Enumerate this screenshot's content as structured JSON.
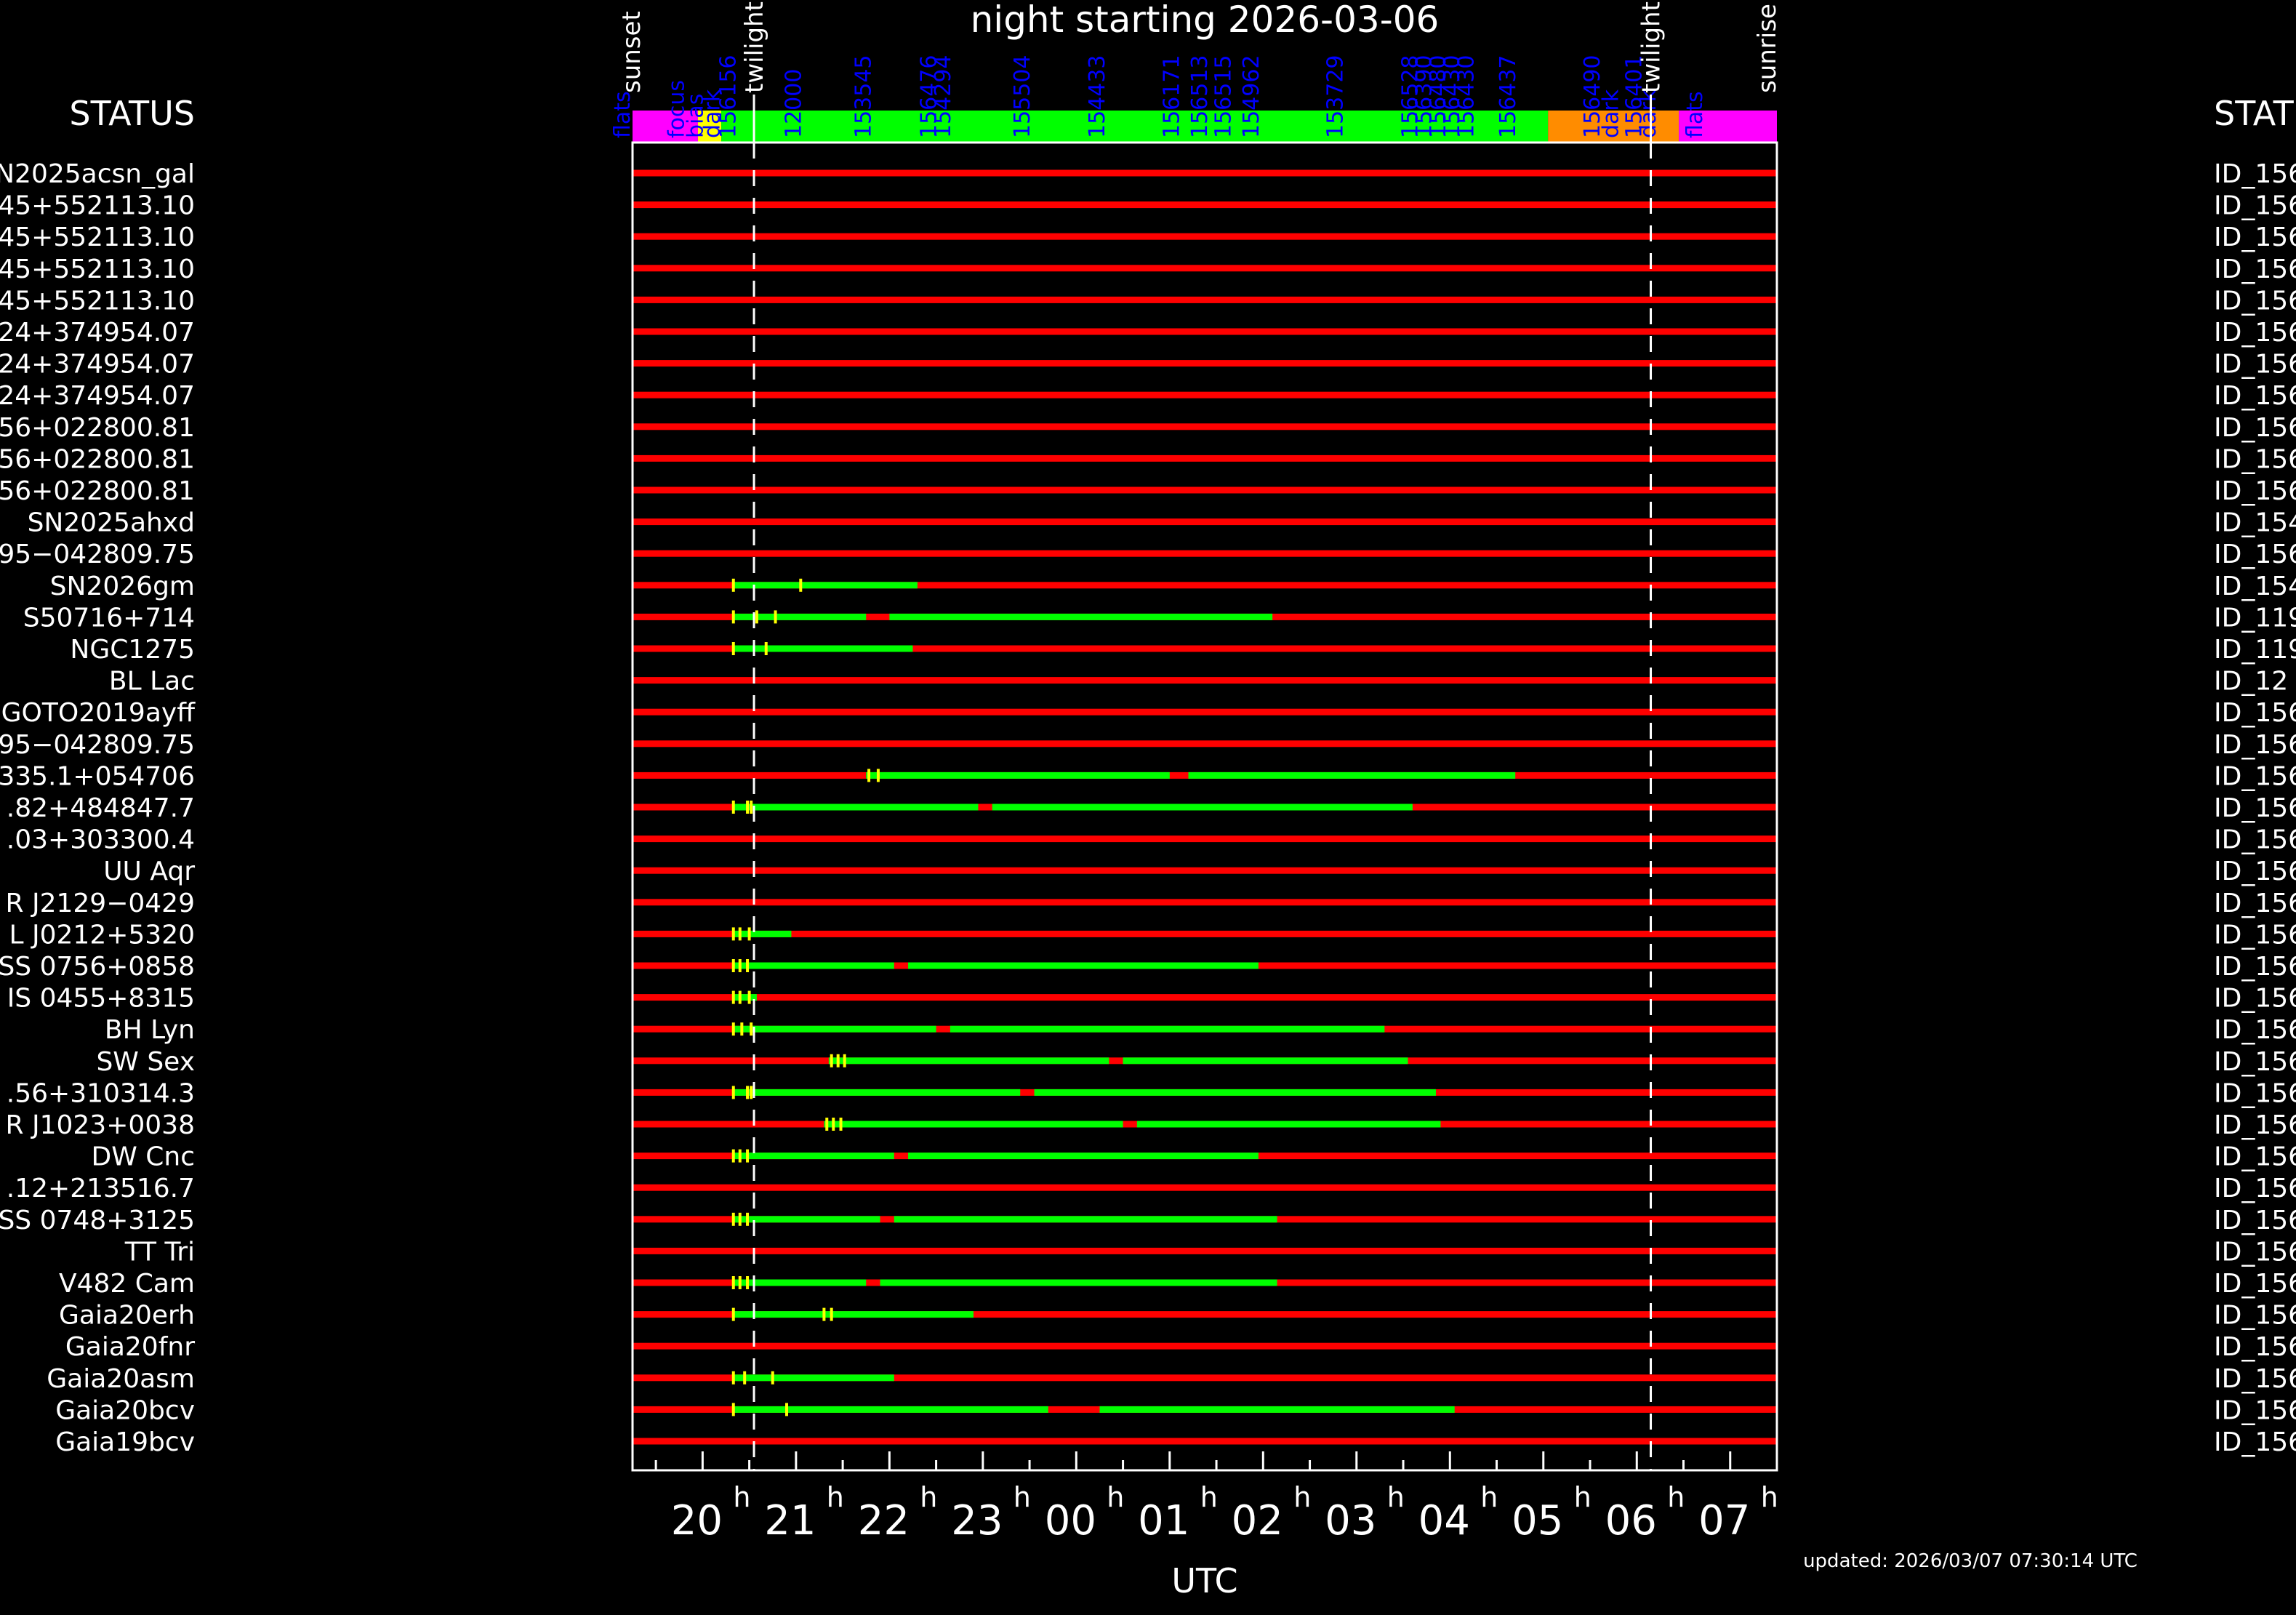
{
  "chart_data": {
    "type": "gantt",
    "title": "night starting 2026-03-06",
    "xlabel": "UTC",
    "left_header": "STATUS",
    "right_header": "STATUS",
    "updated": "updated: 2026/03/07 07:30:14 UTC",
    "x_range_hours": [
      19.25,
      31.5
    ],
    "x_ticks": [
      "20",
      "21",
      "22",
      "23",
      "00",
      "01",
      "02",
      "03",
      "04",
      "05",
      "06",
      "07"
    ],
    "x_tick_hours": [
      20,
      21,
      22,
      23,
      24,
      25,
      26,
      27,
      28,
      29,
      30,
      31
    ],
    "tick_suffix": "h",
    "twilight_hours": [
      20.55,
      30.15
    ],
    "events": [
      {
        "label": "sunset",
        "hour": 19.25
      },
      {
        "label": "twilight",
        "hour": 20.55
      },
      {
        "label": "twilight",
        "hour": 30.15
      },
      {
        "label": "sunrise",
        "hour": 31.5
      }
    ],
    "top_bar": [
      {
        "start": 19.25,
        "end": 19.95,
        "color": "#ff00ff"
      },
      {
        "start": 19.95,
        "end": 20.2,
        "color": "#ffff00"
      },
      {
        "start": 20.2,
        "end": 29.05,
        "color": "#00ff00"
      },
      {
        "start": 29.05,
        "end": 30.45,
        "color": "#ff8c00"
      },
      {
        "start": 30.45,
        "end": 31.5,
        "color": "#ff00ff"
      }
    ],
    "top_labels": [
      {
        "text": "flats",
        "hour": 19.22
      },
      {
        "text": "focus",
        "hour": 19.8
      },
      {
        "text": "bias",
        "hour": 20.0
      },
      {
        "text": "dark",
        "hour": 20.18
      },
      {
        "text": "156156",
        "hour": 20.35
      },
      {
        "text": "12000",
        "hour": 21.05
      },
      {
        "text": "153545",
        "hour": 21.8
      },
      {
        "text": "156476",
        "hour": 22.5
      },
      {
        "text": "154294",
        "hour": 22.65
      },
      {
        "text": "155504",
        "hour": 23.5
      },
      {
        "text": "154433",
        "hour": 24.3
      },
      {
        "text": "156171",
        "hour": 25.1
      },
      {
        "text": "156513",
        "hour": 25.4
      },
      {
        "text": "156515",
        "hour": 25.65
      },
      {
        "text": "154962",
        "hour": 25.95
      },
      {
        "text": "153729",
        "hour": 26.85
      },
      {
        "text": "156528",
        "hour": 27.65
      },
      {
        "text": "156390",
        "hour": 27.8
      },
      {
        "text": "156480",
        "hour": 27.95
      },
      {
        "text": "156430",
        "hour": 28.1
      },
      {
        "text": "156430",
        "hour": 28.25
      },
      {
        "text": "156437",
        "hour": 28.7
      },
      {
        "text": "156490",
        "hour": 29.6
      },
      {
        "text": "dark",
        "hour": 29.8
      },
      {
        "text": "156401",
        "hour": 30.05
      },
      {
        "text": "dark",
        "hour": 30.2
      },
      {
        "text": "flats",
        "hour": 30.7
      }
    ],
    "rows": [
      {
        "target": "N2025acsn_gal",
        "id": "ID_156",
        "windows": [],
        "marks": []
      },
      {
        "target": "45+552113.10",
        "id": "ID_156",
        "windows": [],
        "marks": []
      },
      {
        "target": "45+552113.10",
        "id": "ID_156",
        "windows": [],
        "marks": []
      },
      {
        "target": "45+552113.10",
        "id": "ID_156",
        "windows": [],
        "marks": []
      },
      {
        "target": "45+552113.10",
        "id": "ID_156",
        "windows": [],
        "marks": []
      },
      {
        "target": "24+374954.07",
        "id": "ID_156",
        "windows": [],
        "marks": []
      },
      {
        "target": "24+374954.07",
        "id": "ID_156",
        "windows": [],
        "marks": []
      },
      {
        "target": "24+374954.07",
        "id": "ID_156",
        "windows": [],
        "marks": []
      },
      {
        "target": "56+022800.81",
        "id": "ID_156",
        "windows": [],
        "marks": []
      },
      {
        "target": "56+022800.81",
        "id": "ID_156",
        "windows": [],
        "marks": []
      },
      {
        "target": "56+022800.81",
        "id": "ID_156",
        "windows": [],
        "marks": []
      },
      {
        "target": "SN2025ahxd",
        "id": "ID_154",
        "windows": [],
        "marks": []
      },
      {
        "target": "95−042809.75",
        "id": "ID_156",
        "windows": [],
        "marks": []
      },
      {
        "target": "SN2026gm",
        "id": "ID_154",
        "windows": [
          [
            20.33,
            22.3
          ]
        ],
        "marks": [
          20.33,
          21.05
        ]
      },
      {
        "target": "S50716+714",
        "id": "ID_119",
        "windows": [
          [
            20.33,
            21.75
          ],
          [
            22.0,
            26.1
          ]
        ],
        "marks": [
          20.33,
          20.58,
          20.78
        ]
      },
      {
        "target": "NGC1275",
        "id": "ID_119",
        "windows": [
          [
            20.33,
            22.25
          ]
        ],
        "marks": [
          20.33,
          20.68
        ]
      },
      {
        "target": "BL Lac",
        "id": "ID_12",
        "windows": [],
        "marks": []
      },
      {
        "target": "GOTO2019ayff",
        "id": "ID_156",
        "windows": [],
        "marks": []
      },
      {
        "target": "95−042809.75",
        "id": "ID_156",
        "windows": [],
        "marks": []
      },
      {
        "target": "335.1+054706",
        "id": "ID_156",
        "windows": [
          [
            21.75,
            25.0
          ],
          [
            25.2,
            28.7
          ]
        ],
        "marks": [
          21.78,
          21.88
        ]
      },
      {
        "target": ".82+484847.7",
        "id": "ID_156",
        "windows": [
          [
            20.33,
            22.95
          ],
          [
            23.1,
            27.6
          ]
        ],
        "marks": [
          20.33,
          20.48,
          20.52
        ]
      },
      {
        "target": ".03+303300.4",
        "id": "ID_156",
        "windows": [],
        "marks": []
      },
      {
        "target": "UU Aqr",
        "id": "ID_156",
        "windows": [],
        "marks": []
      },
      {
        "target": "R J2129−0429",
        "id": "ID_156",
        "windows": [],
        "marks": []
      },
      {
        "target": "L J0212+5320",
        "id": "ID_156",
        "windows": [
          [
            20.33,
            20.95
          ]
        ],
        "marks": [
          20.33,
          20.4,
          20.5
        ]
      },
      {
        "target": "SS 0756+0858",
        "id": "ID_156",
        "windows": [
          [
            20.33,
            22.05
          ],
          [
            22.2,
            25.95
          ]
        ],
        "marks": [
          20.33,
          20.4,
          20.48
        ]
      },
      {
        "target": "IS 0455+8315",
        "id": "ID_156",
        "windows": [
          [
            20.33,
            20.58
          ]
        ],
        "marks": [
          20.33,
          20.4,
          20.5
        ]
      },
      {
        "target": "BH Lyn",
        "id": "ID_156",
        "windows": [
          [
            20.33,
            22.5
          ],
          [
            22.65,
            27.3
          ]
        ],
        "marks": [
          20.33,
          20.42,
          20.52
        ]
      },
      {
        "target": "SW Sex",
        "id": "ID_156",
        "windows": [
          [
            21.35,
            24.35
          ],
          [
            24.5,
            27.55
          ]
        ],
        "marks": [
          21.38,
          21.45,
          21.52
        ]
      },
      {
        "target": ".56+310314.3",
        "id": "ID_156",
        "windows": [
          [
            20.33,
            23.4
          ],
          [
            23.55,
            27.85
          ]
        ],
        "marks": [
          20.33,
          20.48,
          20.52
        ]
      },
      {
        "target": "R J1023+0038",
        "id": "ID_156",
        "windows": [
          [
            21.3,
            24.5
          ],
          [
            24.65,
            27.9
          ]
        ],
        "marks": [
          21.33,
          21.4,
          21.48
        ]
      },
      {
        "target": "DW Cnc",
        "id": "ID_156",
        "windows": [
          [
            20.33,
            22.05
          ],
          [
            22.2,
            25.95
          ]
        ],
        "marks": [
          20.33,
          20.4,
          20.48
        ]
      },
      {
        "target": ".12+213516.7",
        "id": "ID_156",
        "windows": [],
        "marks": []
      },
      {
        "target": "SS 0748+3125",
        "id": "ID_156",
        "windows": [
          [
            20.33,
            21.9
          ],
          [
            22.05,
            26.15
          ]
        ],
        "marks": [
          20.33,
          20.4,
          20.48
        ]
      },
      {
        "target": "TT Tri",
        "id": "ID_156",
        "windows": [],
        "marks": []
      },
      {
        "target": "V482 Cam",
        "id": "ID_156",
        "windows": [
          [
            20.33,
            21.75
          ],
          [
            21.9,
            26.15
          ]
        ],
        "marks": [
          20.33,
          20.4,
          20.48
        ]
      },
      {
        "target": "Gaia20erh",
        "id": "ID_156",
        "windows": [
          [
            20.33,
            22.9
          ]
        ],
        "marks": [
          20.33,
          21.3,
          21.38
        ]
      },
      {
        "target": "Gaia20fnr",
        "id": "ID_156",
        "windows": [],
        "marks": []
      },
      {
        "target": "Gaia20asm",
        "id": "ID_156",
        "windows": [
          [
            20.33,
            22.05
          ]
        ],
        "marks": [
          20.33,
          20.45,
          20.75
        ]
      },
      {
        "target": "Gaia20bcv",
        "id": "ID_156",
        "windows": [
          [
            20.33,
            23.7
          ],
          [
            24.25,
            28.05
          ]
        ],
        "marks": [
          20.33,
          20.9
        ]
      },
      {
        "target": "Gaia19bcv",
        "id": "ID_156",
        "windows": [],
        "marks": []
      }
    ]
  },
  "colors": {
    "background": "#000000",
    "unavailable": "#ff0000",
    "available": "#00ff00",
    "marker": "#ffff00",
    "top_label": "#0000ff",
    "text": "#ffffff"
  }
}
